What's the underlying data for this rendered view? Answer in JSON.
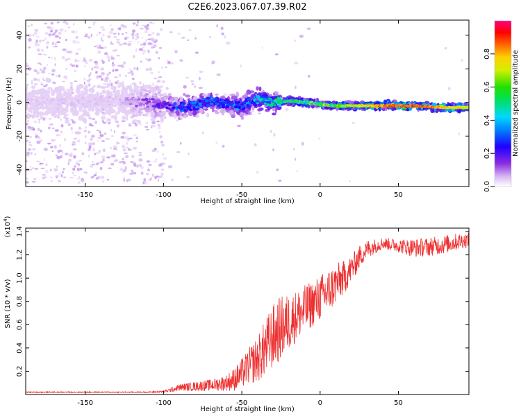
{
  "figure": {
    "title": "C2E6.2023.067.07.39.R02"
  },
  "chart_data": [
    {
      "type": "heatmap",
      "name": "spectrogram",
      "xlabel": "Height of straight line (km)",
      "ylabel": "Frequency (Hz)",
      "xlim": [
        -188,
        95
      ],
      "ylim": [
        -50,
        49
      ],
      "xticks": [
        -150,
        -100,
        -50,
        0,
        50
      ],
      "yticks": [
        -40,
        -20,
        0,
        20,
        40
      ],
      "colorbar": {
        "label": "Normalized spectral amplitude",
        "range": [
          0.0,
          1.0
        ],
        "ticks": [
          0.0,
          0.2,
          0.4,
          0.6,
          0.8
        ],
        "colormap": "rainbow"
      },
      "signal_trace": {
        "x": [
          -188,
          -160,
          -130,
          -100,
          -90,
          -80,
          -70,
          -60,
          -50,
          -40,
          -30,
          -20,
          -10,
          0,
          10,
          20,
          40,
          60,
          80,
          95
        ],
        "frequency": [
          1,
          0,
          1,
          -1,
          -3,
          -2,
          1,
          -1,
          -2,
          2,
          0,
          1,
          0,
          -1,
          -2,
          -2,
          -2,
          -2,
          -3,
          -3
        ],
        "amplitude": [
          0.05,
          0.05,
          0.05,
          0.18,
          0.3,
          0.35,
          0.3,
          0.3,
          0.35,
          0.4,
          0.5,
          0.55,
          0.6,
          0.6,
          0.65,
          0.7,
          0.85,
          0.9,
          0.8,
          0.75
        ]
      }
    },
    {
      "type": "line",
      "name": "snr",
      "xlabel": "Height of straight line (km)",
      "ylabel": "SNR (10 * v/v)",
      "y_multiplier": "(x10^4)",
      "xlim": [
        -188,
        95
      ],
      "ylim": [
        0.0,
        1.43
      ],
      "xticks": [
        -150,
        -100,
        -50,
        0,
        50
      ],
      "yticks": [
        0.2,
        0.4,
        0.6,
        0.8,
        1.0,
        1.2,
        1.4
      ],
      "color": "#ee3030",
      "series": [
        {
          "name": "SNR",
          "x": [
            -188,
            -150,
            -110,
            -100,
            -95,
            -90,
            -80,
            -70,
            -60,
            -55,
            -50,
            -45,
            -40,
            -35,
            -30,
            -25,
            -20,
            -15,
            -10,
            -5,
            0,
            5,
            10,
            15,
            20,
            25,
            30,
            40,
            50,
            60,
            70,
            80,
            90,
            95
          ],
          "values": [
            0.02,
            0.02,
            0.02,
            0.025,
            0.04,
            0.06,
            0.07,
            0.08,
            0.1,
            0.13,
            0.18,
            0.25,
            0.3,
            0.4,
            0.5,
            0.57,
            0.62,
            0.68,
            0.72,
            0.78,
            0.83,
            0.88,
            0.95,
            1.0,
            1.08,
            1.18,
            1.25,
            1.3,
            1.28,
            1.26,
            1.27,
            1.29,
            1.32,
            1.33
          ],
          "spread": [
            0.005,
            0.005,
            0.005,
            0.01,
            0.02,
            0.03,
            0.04,
            0.05,
            0.07,
            0.1,
            0.13,
            0.16,
            0.2,
            0.25,
            0.28,
            0.28,
            0.25,
            0.22,
            0.22,
            0.2,
            0.2,
            0.2,
            0.18,
            0.15,
            0.12,
            0.1,
            0.08,
            0.05,
            0.06,
            0.08,
            0.08,
            0.08,
            0.07,
            0.06
          ]
        }
      ]
    }
  ]
}
